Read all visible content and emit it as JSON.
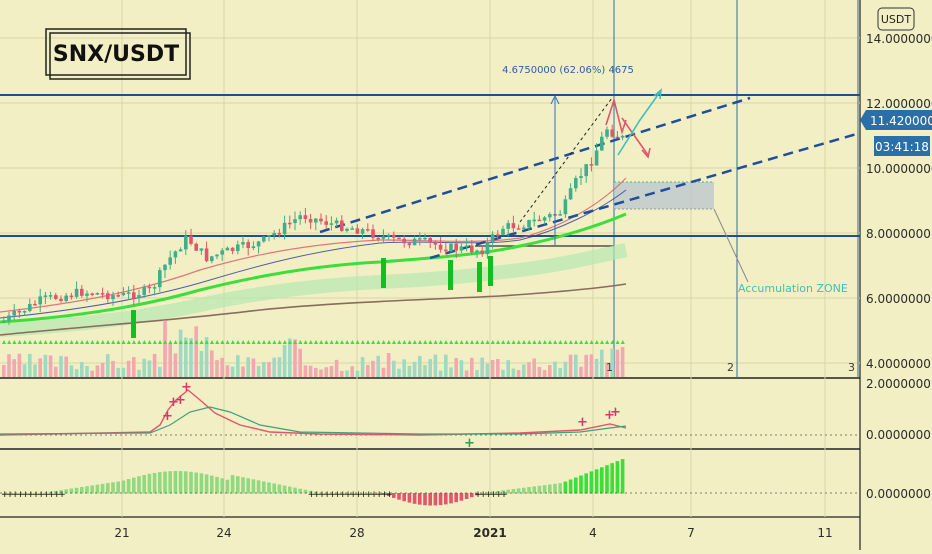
{
  "symbol_label": "SNX/USDT",
  "currency_badge": "USDT",
  "measure_label": "4.6750000 (62.06%) 4675",
  "accumulation_label": "Accumulation ZONE",
  "price_tag": "11.4200000",
  "countdown_tag": "03:41:18",
  "price_axis": [
    "14.0000000",
    "12.0000000",
    "10.0000000",
    "8.0000000",
    "6.0000000",
    "4.0000000"
  ],
  "osc1_axis": [
    "2.0000000",
    "0.0000000"
  ],
  "osc2_axis": [
    "0.0000000"
  ],
  "time_axis": [
    "21",
    "24",
    "28",
    "2021",
    "4",
    "7",
    "11"
  ],
  "vline_labels": [
    "1",
    "2",
    "3"
  ],
  "colors": {
    "background": "#f2efc4",
    "price_tag": "#2a6fa8",
    "level_line": "#1f4f8f",
    "bull": "#3fae8a",
    "bear": "#e0566a",
    "ema_green": "#3adf3a",
    "signal_arrow": "#10c020",
    "pink_marker": "#d9346b"
  }
}
